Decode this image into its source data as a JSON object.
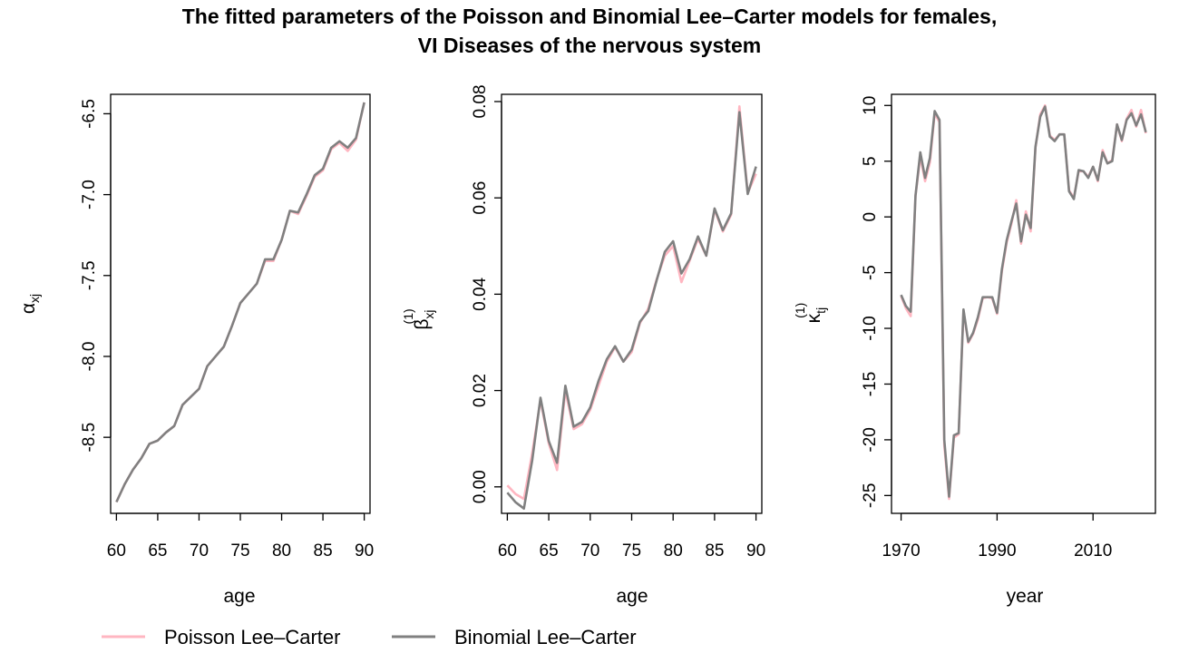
{
  "title": {
    "line1": "The fitted parameters of the Poisson and Binomial Lee–Carter models for females,",
    "line2": "VI Diseases of the nervous system"
  },
  "colors": {
    "poisson": "#ffb6c1",
    "binomial": "#808080"
  },
  "legend": [
    {
      "name": "Poisson Lee–Carter",
      "color": "#ffb6c1"
    },
    {
      "name": "Binomial Lee–Carter",
      "color": "#808080"
    }
  ],
  "chart_data": [
    {
      "type": "line",
      "xlabel": "age",
      "ylabel": "α_xj",
      "xlim": [
        59.3,
        90.7
      ],
      "ylim": [
        -8.97,
        -6.38
      ],
      "xticks": [
        60,
        65,
        70,
        75,
        80,
        85,
        90
      ],
      "yticks": [
        -8.5,
        -8.0,
        -7.5,
        -7.0,
        -6.5
      ],
      "ytick_labels": [
        "-8.5",
        "-8.0",
        "-7.5",
        "-7.0",
        "-6.5"
      ],
      "x": [
        60,
        61,
        62,
        63,
        64,
        65,
        66,
        67,
        68,
        69,
        70,
        71,
        72,
        73,
        74,
        75,
        76,
        77,
        78,
        79,
        80,
        81,
        82,
        83,
        84,
        85,
        86,
        87,
        88,
        89,
        90
      ],
      "series": [
        {
          "name": "Poisson Lee–Carter",
          "values": [
            -8.9,
            -8.79,
            -8.7,
            -8.63,
            -8.54,
            -8.52,
            -8.47,
            -8.43,
            -8.3,
            -8.25,
            -8.2,
            -8.06,
            -8.0,
            -7.94,
            -7.81,
            -7.67,
            -7.61,
            -7.55,
            -7.41,
            -7.41,
            -7.28,
            -7.1,
            -7.12,
            -7.01,
            -6.89,
            -6.85,
            -6.72,
            -6.68,
            -6.73,
            -6.66,
            -6.43
          ]
        },
        {
          "name": "Binomial Lee–Carter",
          "values": [
            -8.9,
            -8.79,
            -8.7,
            -8.63,
            -8.54,
            -8.52,
            -8.47,
            -8.43,
            -8.3,
            -8.25,
            -8.2,
            -8.06,
            -8.0,
            -7.94,
            -7.81,
            -7.67,
            -7.61,
            -7.55,
            -7.4,
            -7.4,
            -7.28,
            -7.1,
            -7.11,
            -7.0,
            -6.88,
            -6.84,
            -6.71,
            -6.67,
            -6.71,
            -6.65,
            -6.43
          ]
        }
      ]
    },
    {
      "type": "line",
      "xlabel": "age",
      "ylabel": "β_xj^(1)",
      "xlim": [
        59.3,
        90.7
      ],
      "ylim": [
        -0.0055,
        0.0815
      ],
      "xticks": [
        60,
        65,
        70,
        75,
        80,
        85,
        90
      ],
      "yticks": [
        0.0,
        0.02,
        0.04,
        0.06,
        0.08
      ],
      "ytick_labels": [
        "0.00",
        "0.02",
        "0.04",
        "0.06",
        "0.08"
      ],
      "x": [
        60,
        61,
        62,
        63,
        64,
        65,
        66,
        67,
        68,
        69,
        70,
        71,
        72,
        73,
        74,
        75,
        76,
        77,
        78,
        79,
        80,
        81,
        82,
        83,
        84,
        85,
        86,
        87,
        88,
        89,
        90
      ],
      "series": [
        {
          "name": "Poisson Lee–Carter",
          "values": [
            0.0003,
            -0.0015,
            -0.0025,
            0.007,
            0.018,
            0.009,
            0.0035,
            0.02,
            0.012,
            0.013,
            0.016,
            0.021,
            0.026,
            0.029,
            0.026,
            0.028,
            0.034,
            0.037,
            0.043,
            0.048,
            0.05,
            0.0425,
            0.047,
            0.0515,
            0.048,
            0.0575,
            0.053,
            0.0565,
            0.079,
            0.061,
            0.065
          ]
        },
        {
          "name": "Binomial Lee–Carter",
          "values": [
            -0.0012,
            -0.0032,
            -0.0045,
            0.0055,
            0.0185,
            0.0095,
            0.005,
            0.021,
            0.0125,
            0.0135,
            0.0165,
            0.022,
            0.0265,
            0.0292,
            0.026,
            0.0285,
            0.0343,
            0.0365,
            0.0428,
            0.0488,
            0.051,
            0.0443,
            0.0473,
            0.052,
            0.048,
            0.0578,
            0.0533,
            0.0568,
            0.0778,
            0.0608,
            0.0665
          ]
        }
      ]
    },
    {
      "type": "line",
      "xlabel": "year",
      "ylabel": "κ_tj^(1)",
      "xlim": [
        1968,
        2023
      ],
      "ylim": [
        -26.6,
        11.0
      ],
      "xticks": [
        1970,
        1990,
        2010
      ],
      "yticks": [
        -25,
        -20,
        -15,
        -10,
        -5,
        0,
        5,
        10
      ],
      "ytick_labels": [
        "-25",
        "-20",
        "-15",
        "-10",
        "-5",
        "0",
        "5",
        "10"
      ],
      "x": [
        1970,
        1971,
        1972,
        1973,
        1974,
        1975,
        1976,
        1977,
        1978,
        1979,
        1980,
        1981,
        1982,
        1983,
        1984,
        1985,
        1986,
        1987,
        1988,
        1989,
        1990,
        1991,
        1992,
        1993,
        1994,
        1995,
        1996,
        1997,
        1998,
        1999,
        2000,
        2001,
        2002,
        2003,
        2004,
        2005,
        2006,
        2007,
        2008,
        2009,
        2010,
        2011,
        2012,
        2013,
        2014,
        2015,
        2016,
        2017,
        2018,
        2019,
        2020,
        2021
      ],
      "series": [
        {
          "name": "Poisson Lee–Carter",
          "values": [
            -7.1,
            -8.2,
            -8.9,
            1.9,
            5.4,
            3.2,
            4.9,
            9.3,
            8.5,
            -20.5,
            -25.3,
            -19.8,
            -19.5,
            -8.4,
            -11.3,
            -10.5,
            -9.2,
            -7.3,
            -7.2,
            -7.3,
            -8.7,
            -4.9,
            -2.3,
            -0.6,
            1.5,
            -2.4,
            0.5,
            -1.3,
            6.2,
            9.2,
            10.0,
            7.3,
            6.9,
            7.4,
            7.4,
            2.4,
            1.7,
            4.1,
            4.1,
            3.6,
            4.5,
            3.2,
            6.0,
            4.8,
            5.1,
            8.3,
            6.8,
            8.8,
            9.6,
            8.1,
            9.6,
            7.5
          ]
        },
        {
          "name": "Binomial Lee–Carter",
          "values": [
            -7.0,
            -8.0,
            -8.5,
            1.9,
            5.8,
            3.5,
            5.3,
            9.5,
            8.7,
            -20.0,
            -25.1,
            -19.6,
            -19.4,
            -8.3,
            -11.2,
            -10.4,
            -9.0,
            -7.2,
            -7.2,
            -7.2,
            -8.6,
            -4.7,
            -2.1,
            -0.4,
            1.2,
            -2.2,
            0.2,
            -1.0,
            6.3,
            9.0,
            9.9,
            7.2,
            6.8,
            7.4,
            7.4,
            2.3,
            1.6,
            4.2,
            4.1,
            3.5,
            4.5,
            3.3,
            5.8,
            4.8,
            5.0,
            8.3,
            6.9,
            8.7,
            9.3,
            8.2,
            9.2,
            7.6
          ]
        }
      ]
    }
  ]
}
